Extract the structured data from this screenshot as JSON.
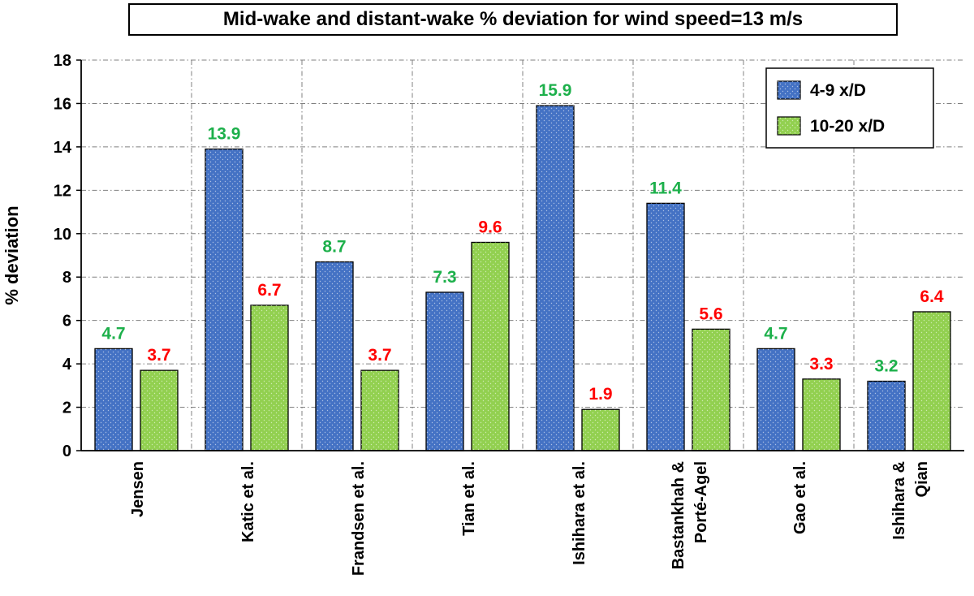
{
  "chart_data": {
    "type": "bar",
    "title": "Mid-wake and distant-wake % deviation for wind speed=13 m/s",
    "xlabel": "",
    "ylabel": "% deviation",
    "ylim": [
      0,
      18
    ],
    "yticks": [
      "0",
      "2",
      "4",
      "6",
      "8",
      "10",
      "12",
      "14",
      "16",
      "18"
    ],
    "categories": [
      [
        "Jensen"
      ],
      [
        "Katic et al."
      ],
      [
        "Frandsen et al."
      ],
      [
        "Tian et al."
      ],
      [
        "Ishihara et al."
      ],
      [
        "Bastankhah &",
        "Porté-Agel"
      ],
      [
        "Gao et al."
      ],
      [
        "Ishihara &",
        "Qian"
      ]
    ],
    "series": [
      {
        "name": "4-9 x/D",
        "color": "#4472C4",
        "values": [
          4.7,
          13.9,
          8.7,
          7.3,
          15.9,
          11.4,
          4.7,
          3.2
        ],
        "labels": [
          "4.7",
          "13.9",
          "8.7",
          "7.3",
          "15.9",
          "11.4",
          "4.7",
          "3.2"
        ],
        "label_color": "#1DB04B"
      },
      {
        "name": "10-20 x/D",
        "color": "#92D050",
        "values": [
          3.7,
          6.7,
          3.7,
          9.6,
          1.9,
          5.6,
          3.3,
          6.4
        ],
        "labels": [
          "3.7",
          "6.7",
          "3.7",
          "9.6",
          "1.9",
          "5.6",
          "3.3",
          "6.4"
        ],
        "label_color": "#FF0000"
      }
    ],
    "grid": true,
    "legend_position": "top-right"
  }
}
